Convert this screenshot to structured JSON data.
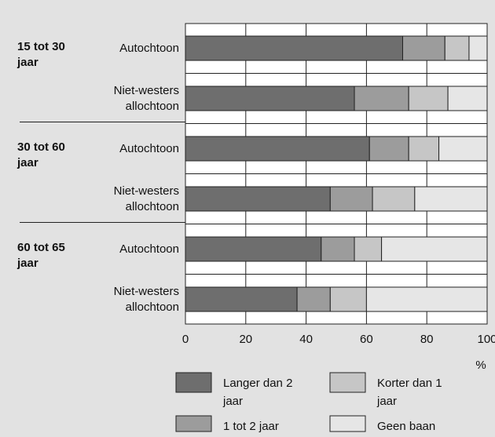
{
  "chart_data": {
    "type": "stacked-barh",
    "groups": [
      {
        "label": "15 tot 30 jaar",
        "rows": [
          0,
          1
        ]
      },
      {
        "label": "30 tot 60 jaar",
        "rows": [
          2,
          3
        ]
      },
      {
        "label": "60 tot 65 jaar",
        "rows": [
          4,
          5
        ]
      }
    ],
    "categories": [
      "Autochtoon",
      "Niet-westers allochtoon",
      "Autochtoon",
      "Niet-westers allochtoon",
      "Autochtoon",
      "Niet-westers allochtoon"
    ],
    "series": [
      {
        "name": "Langer dan 2 jaar",
        "color": "#6e6e6e",
        "values": [
          72,
          56,
          61,
          48,
          45,
          37
        ]
      },
      {
        "name": "1 tot 2 jaar",
        "color": "#9c9c9c",
        "values": [
          14,
          18,
          13,
          14,
          11,
          11
        ]
      },
      {
        "name": "Korter dan 1 jaar",
        "color": "#c6c6c6",
        "values": [
          8,
          13,
          10,
          14,
          9,
          12
        ]
      },
      {
        "name": "Geen baan",
        "color": "#e6e6e6",
        "values": [
          6,
          13,
          16,
          24,
          35,
          40
        ]
      }
    ],
    "xlabel": "%",
    "xlim": [
      0,
      100
    ],
    "xticks": [
      0,
      20,
      40,
      60,
      80,
      100
    ],
    "grid": true
  }
}
